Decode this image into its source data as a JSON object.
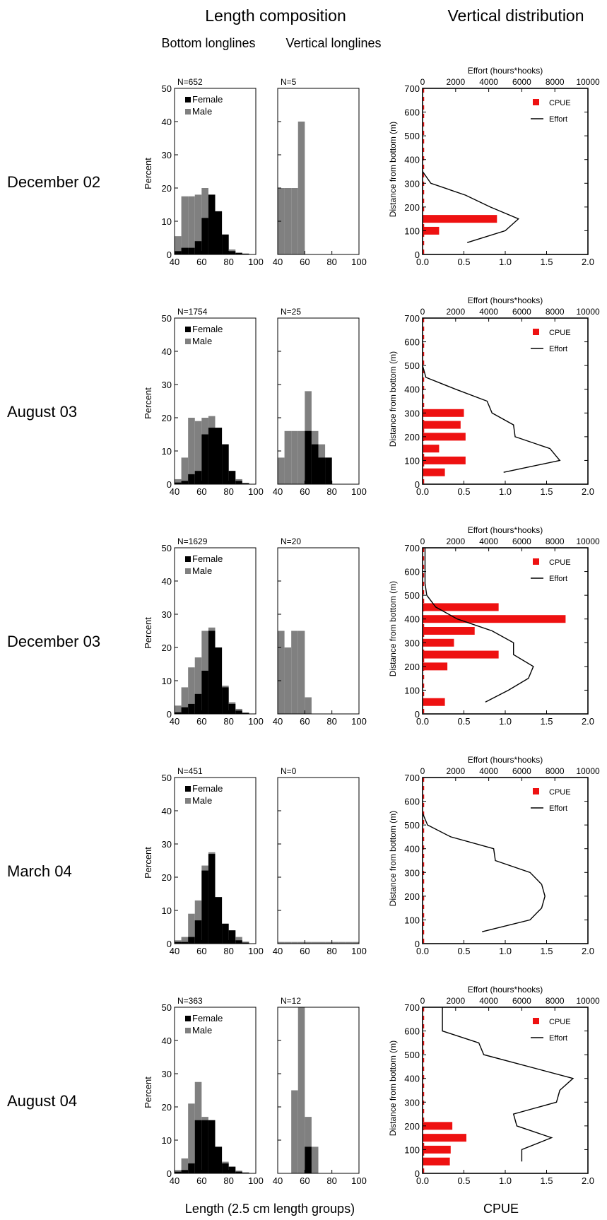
{
  "headers": {
    "length_composition": "Length composition",
    "vertical_distribution": "Vertical distribution",
    "bottom_longlines": "Bottom longlines",
    "vertical_longlines": "Vertical longlines",
    "x_length_label": "Length (2.5 cm length groups)",
    "x_cpue_label": "CPUE"
  },
  "axis_text": {
    "percent": "Percent",
    "distance": "Distance from bottom (m)",
    "effort": "Effort (hours*hooks)"
  },
  "legend": {
    "female": "Female",
    "male": "Male",
    "cpue": "CPUE",
    "effort": "Effort"
  },
  "colors": {
    "female": "#000000",
    "male": "#808080",
    "cpue": "#ee1111",
    "effort": "#000000"
  },
  "chart_data": {
    "type": "bar",
    "length_xlim": [
      40,
      100
    ],
    "length_ticks": [
      40,
      60,
      80,
      100
    ],
    "percent_ylim": [
      0,
      50
    ],
    "percent_ticks": [
      0,
      10,
      20,
      30,
      40,
      50
    ],
    "depth_ylim": [
      0,
      700
    ],
    "depth_ticks": [
      0,
      100,
      200,
      300,
      400,
      500,
      600,
      700
    ],
    "cpue_xlim": [
      0,
      2
    ],
    "cpue_ticks": [
      "0.0",
      "0.5",
      "1.0",
      "1.5",
      "2.0"
    ],
    "effort_xlim": [
      0,
      10000
    ],
    "effort_ticks": [
      0,
      2000,
      4000,
      6000,
      8000,
      10000
    ],
    "length_bins": [
      40,
      45,
      50,
      55,
      60,
      65,
      70,
      75,
      80,
      85,
      90,
      95
    ],
    "depth_bins": [
      50,
      100,
      150,
      200,
      250,
      300,
      350,
      400,
      450,
      500,
      550,
      600,
      650
    ],
    "periods": [
      {
        "label": "December 02",
        "bottom_n": "N=652",
        "bottom_female": [
          1,
          2,
          2,
          4,
          11,
          18,
          13,
          6,
          1,
          0.5,
          0.2,
          0
        ],
        "bottom_total": [
          5.5,
          17.5,
          17.5,
          18,
          20,
          18,
          13,
          6,
          1.5,
          0.5,
          0.3,
          0
        ],
        "vertical_n": "N=5",
        "vertical_female": [
          0,
          0,
          0,
          0,
          0,
          0,
          0,
          0,
          0,
          0,
          0,
          0
        ],
        "vertical_total": [
          20,
          20,
          20,
          40,
          0,
          0,
          0,
          0,
          0,
          0,
          0,
          0
        ],
        "cpue": [
          0,
          0.2,
          0.9,
          0,
          0,
          0,
          0,
          0,
          0,
          0,
          0,
          0,
          0
        ],
        "effort": [
          [
            2700,
            50
          ],
          [
            5000,
            100
          ],
          [
            5800,
            150
          ],
          [
            4100,
            200
          ],
          [
            2600,
            250
          ],
          [
            500,
            300
          ],
          [
            0,
            350
          ]
        ]
      },
      {
        "label": "August 03",
        "bottom_n": "N=1754",
        "bottom_female": [
          0.5,
          1,
          3,
          4,
          15,
          17,
          17,
          12,
          4,
          1,
          0.3,
          0
        ],
        "bottom_total": [
          1.5,
          8,
          20,
          19,
          20,
          20.5,
          17,
          12,
          4,
          1.5,
          0.4,
          0
        ],
        "vertical_n": "N=25",
        "vertical_female": [
          0,
          0,
          0,
          0,
          16,
          12,
          8,
          8,
          0,
          0,
          0,
          0
        ],
        "vertical_total": [
          8,
          16,
          16,
          16,
          28,
          16,
          12,
          8,
          0,
          0,
          0,
          0
        ],
        "cpue": [
          0.27,
          0.52,
          0.2,
          0.52,
          0.46,
          0.5,
          0,
          0,
          0,
          0,
          0,
          0,
          0
        ],
        "effort": [
          [
            4900,
            50
          ],
          [
            8300,
            100
          ],
          [
            7700,
            150
          ],
          [
            5600,
            200
          ],
          [
            5500,
            250
          ],
          [
            4200,
            300
          ],
          [
            3900,
            350
          ],
          [
            2000,
            400
          ],
          [
            200,
            450
          ],
          [
            0,
            500
          ]
        ]
      },
      {
        "label": "December 03",
        "bottom_n": "N=1629",
        "bottom_female": [
          0.5,
          2,
          3,
          6,
          13,
          25,
          20,
          8,
          3,
          1,
          0.3,
          0
        ],
        "bottom_total": [
          2.5,
          8,
          14,
          17,
          25,
          26,
          20,
          8.5,
          3.5,
          1.5,
          0.4,
          0
        ],
        "vertical_n": "N=20",
        "vertical_female": [
          0,
          0,
          0,
          0,
          0,
          0,
          0,
          0,
          0,
          0,
          0,
          0
        ],
        "vertical_total": [
          25,
          20,
          25,
          25,
          5,
          0,
          0,
          0,
          0,
          0,
          0,
          0
        ],
        "cpue": [
          0.27,
          0,
          0,
          0.3,
          0.92,
          0.38,
          0.63,
          1.73,
          0.92,
          0,
          0,
          0,
          0
        ],
        "effort": [
          [
            3800,
            50
          ],
          [
            5200,
            100
          ],
          [
            6400,
            150
          ],
          [
            6700,
            200
          ],
          [
            5500,
            250
          ],
          [
            5500,
            300
          ],
          [
            4200,
            350
          ],
          [
            2100,
            400
          ],
          [
            800,
            450
          ],
          [
            250,
            500
          ],
          [
            150,
            550
          ],
          [
            150,
            600
          ],
          [
            150,
            650
          ],
          [
            150,
            700
          ]
        ]
      },
      {
        "label": "March 04",
        "bottom_n": "N=451",
        "bottom_female": [
          0.5,
          0.5,
          2,
          7,
          22,
          27,
          14,
          6,
          4,
          1,
          0.3,
          0
        ],
        "bottom_total": [
          1,
          2,
          9,
          13,
          23.5,
          27.5,
          14,
          6,
          4,
          2,
          0.6,
          0
        ],
        "vertical_n": "N=0",
        "vertical_female": [
          0,
          0,
          0,
          0,
          0,
          0,
          0,
          0,
          0,
          0,
          0,
          0
        ],
        "vertical_total": [
          0.5,
          0.5,
          0.5,
          0.5,
          0.5,
          0.5,
          0.5,
          0.5,
          0.5,
          0.5,
          0.5,
          0.5
        ],
        "cpue": [
          0,
          0,
          0,
          0,
          0,
          0,
          0,
          0,
          0,
          0,
          0,
          0,
          0
        ],
        "effort": [
          [
            3600,
            50
          ],
          [
            6500,
            100
          ],
          [
            7200,
            150
          ],
          [
            7400,
            200
          ],
          [
            7200,
            250
          ],
          [
            6500,
            300
          ],
          [
            4400,
            350
          ],
          [
            4300,
            400
          ],
          [
            1700,
            450
          ],
          [
            300,
            500
          ],
          [
            0,
            550
          ]
        ]
      },
      {
        "label": "August 04",
        "bottom_n": "N=363",
        "bottom_female": [
          0.5,
          1,
          3,
          16,
          16,
          16,
          8,
          3,
          2,
          0.5,
          0.2,
          0
        ],
        "bottom_total": [
          1,
          4.5,
          21,
          27.5,
          17,
          16,
          8,
          3.5,
          2,
          0.8,
          0.3,
          0
        ],
        "vertical_n": "N=12",
        "vertical_female": [
          0,
          0,
          0,
          0,
          8,
          0,
          0,
          0,
          0,
          0,
          0,
          0
        ],
        "vertical_total": [
          0,
          0,
          25,
          50,
          17,
          8,
          0,
          0,
          0,
          0,
          0,
          0
        ],
        "cpue": [
          0.33,
          0.34,
          0.53,
          0.36,
          0,
          0,
          0,
          0,
          0,
          0,
          0,
          0,
          0
        ],
        "effort": [
          [
            6000,
            50
          ],
          [
            6000,
            100
          ],
          [
            7800,
            150
          ],
          [
            5700,
            200
          ],
          [
            5500,
            250
          ],
          [
            8100,
            300
          ],
          [
            8300,
            350
          ],
          [
            9100,
            400
          ],
          [
            3700,
            500
          ],
          [
            3400,
            550
          ],
          [
            1200,
            600
          ],
          [
            1200,
            700
          ]
        ]
      }
    ]
  }
}
